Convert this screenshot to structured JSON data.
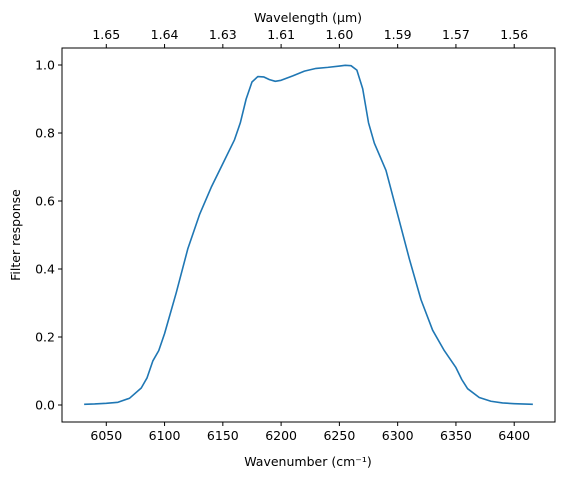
{
  "chart_data": {
    "type": "line",
    "xlabel": "Wavenumber (cm⁻¹)",
    "ylabel": "Filter response",
    "x2label": "Wavelength (μm)",
    "x": [
      6031,
      6040,
      6050,
      6060,
      6070,
      6080,
      6085,
      6090,
      6095,
      6100,
      6110,
      6120,
      6130,
      6140,
      6150,
      6160,
      6165,
      6170,
      6175,
      6180,
      6185,
      6190,
      6195,
      6200,
      6210,
      6220,
      6230,
      6240,
      6250,
      6255,
      6260,
      6265,
      6270,
      6275,
      6280,
      6290,
      6300,
      6310,
      6320,
      6330,
      6340,
      6350,
      6355,
      6360,
      6370,
      6380,
      6390,
      6400,
      6416
    ],
    "series": [
      {
        "color": "#1f77b4",
        "values": [
          0.002,
          0.003,
          0.005,
          0.008,
          0.02,
          0.05,
          0.08,
          0.13,
          0.16,
          0.21,
          0.33,
          0.46,
          0.56,
          0.64,
          0.71,
          0.78,
          0.83,
          0.9,
          0.95,
          0.966,
          0.965,
          0.957,
          0.952,
          0.955,
          0.968,
          0.982,
          0.99,
          0.993,
          0.997,
          0.999,
          0.998,
          0.985,
          0.93,
          0.83,
          0.77,
          0.69,
          0.56,
          0.43,
          0.31,
          0.22,
          0.16,
          0.11,
          0.075,
          0.048,
          0.022,
          0.011,
          0.006,
          0.004,
          0.002
        ]
      }
    ],
    "xlim": [
      6012,
      6435
    ],
    "ylim": [
      -0.05,
      1.05
    ],
    "xticks": [
      6050,
      6100,
      6150,
      6200,
      6250,
      6300,
      6350,
      6400
    ],
    "yticks": [
      {
        "value": 0,
        "label": "0.0"
      },
      0.2,
      0.4,
      0.6,
      0.8,
      {
        "value": 1,
        "label": "1.0"
      }
    ],
    "x2ticks": [
      {
        "value": 6050,
        "label": "1.65"
      },
      {
        "value": 6100,
        "label": "1.64"
      },
      {
        "value": 6150,
        "label": "1.63"
      },
      {
        "value": 6200,
        "label": "1.61"
      },
      {
        "value": 6250,
        "label": "1.60"
      },
      {
        "value": 6300,
        "label": "1.59"
      },
      {
        "value": 6350,
        "label": "1.57"
      },
      {
        "value": 6400,
        "label": "1.56"
      }
    ]
  }
}
